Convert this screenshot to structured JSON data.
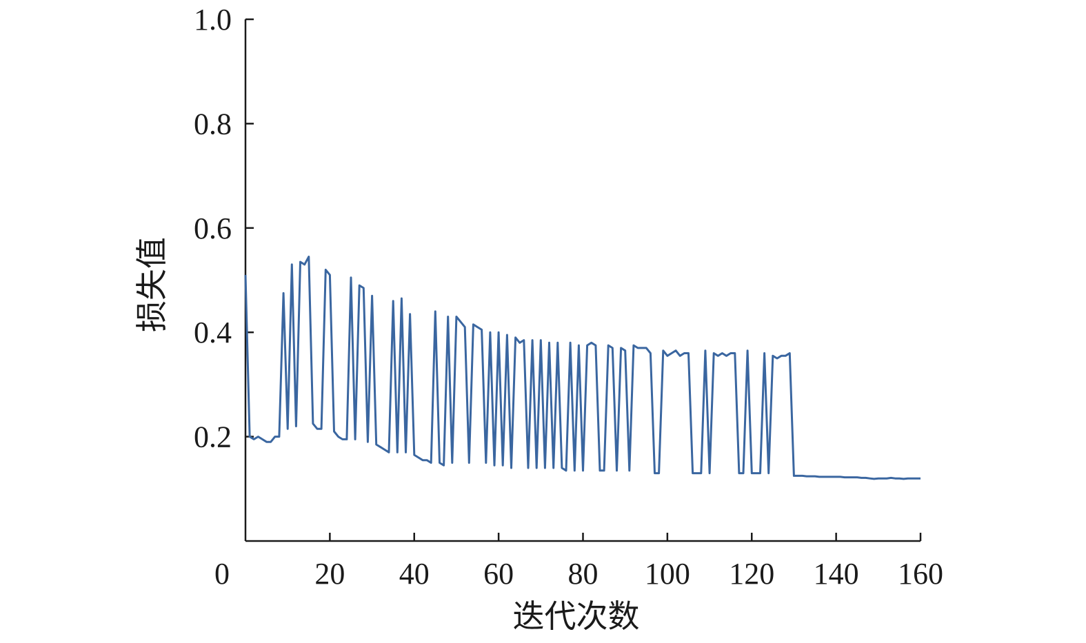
{
  "chart_data": {
    "type": "line",
    "title": "",
    "xlabel": "迭代次数",
    "ylabel": "损失值",
    "xlim": [
      0,
      160
    ],
    "ylim": [
      0,
      1.0
    ],
    "x_ticks": [
      0,
      20,
      40,
      60,
      80,
      100,
      120,
      140,
      160
    ],
    "x_tick_labels": [
      "0",
      "20",
      "40",
      "60",
      "80",
      "100",
      "120",
      "140",
      "160"
    ],
    "y_ticks": [
      0.2,
      0.4,
      0.6,
      0.8,
      1.0
    ],
    "y_tick_labels": [
      "0.2",
      "0.4",
      "0.6",
      "0.8",
      "1.0"
    ],
    "grid": false,
    "legend": "none",
    "colors": {
      "line": "#3a66a0",
      "axis": "#1a1a1a"
    },
    "series": [
      {
        "x": [
          0,
          1,
          2,
          3,
          4,
          5,
          6,
          7,
          8,
          9,
          10,
          11,
          12,
          13,
          14,
          15,
          16,
          17,
          18,
          19,
          20,
          21,
          22,
          23,
          24,
          25,
          26,
          27,
          28,
          29,
          30,
          31,
          32,
          33,
          34,
          35,
          36,
          37,
          38,
          39,
          40,
          41,
          42,
          43,
          44,
          45,
          46,
          47,
          48,
          49,
          50,
          51,
          52,
          53,
          54,
          55,
          56,
          57,
          58,
          59,
          60,
          61,
          62,
          63,
          64,
          65,
          66,
          67,
          68,
          69,
          70,
          71,
          72,
          73,
          74,
          75,
          76,
          77,
          78,
          79,
          80,
          81,
          82,
          83,
          84,
          85,
          86,
          87,
          88,
          89,
          90,
          91,
          92,
          93,
          94,
          95,
          96,
          97,
          98,
          99,
          100,
          101,
          102,
          103,
          104,
          105,
          106,
          107,
          108,
          109,
          110,
          111,
          112,
          113,
          114,
          115,
          116,
          117,
          118,
          119,
          120,
          121,
          122,
          123,
          124,
          125,
          126,
          127,
          128,
          129,
          130,
          131,
          132,
          133,
          134,
          135,
          136,
          137,
          138,
          139,
          140,
          141,
          142,
          143,
          144,
          145,
          146,
          147,
          148,
          149,
          150,
          151,
          152,
          153,
          154,
          155,
          156,
          157,
          158,
          159,
          160
        ],
        "y": [
          0.51,
          0.2,
          0.195,
          0.2,
          0.195,
          0.19,
          0.19,
          0.2,
          0.2,
          0.475,
          0.215,
          0.53,
          0.22,
          0.535,
          0.53,
          0.545,
          0.225,
          0.215,
          0.215,
          0.52,
          0.51,
          0.21,
          0.2,
          0.195,
          0.195,
          0.505,
          0.195,
          0.49,
          0.485,
          0.19,
          0.47,
          0.185,
          0.18,
          0.175,
          0.17,
          0.46,
          0.17,
          0.465,
          0.17,
          0.435,
          0.165,
          0.16,
          0.155,
          0.155,
          0.15,
          0.44,
          0.15,
          0.145,
          0.43,
          0.15,
          0.43,
          0.42,
          0.41,
          0.15,
          0.415,
          0.41,
          0.405,
          0.15,
          0.4,
          0.145,
          0.4,
          0.145,
          0.395,
          0.14,
          0.39,
          0.38,
          0.385,
          0.14,
          0.385,
          0.14,
          0.385,
          0.14,
          0.38,
          0.14,
          0.38,
          0.14,
          0.135,
          0.38,
          0.135,
          0.375,
          0.135,
          0.375,
          0.38,
          0.375,
          0.135,
          0.135,
          0.375,
          0.37,
          0.135,
          0.37,
          0.365,
          0.135,
          0.375,
          0.37,
          0.37,
          0.37,
          0.36,
          0.13,
          0.13,
          0.365,
          0.355,
          0.36,
          0.365,
          0.355,
          0.36,
          0.36,
          0.13,
          0.13,
          0.13,
          0.365,
          0.13,
          0.36,
          0.355,
          0.36,
          0.355,
          0.36,
          0.36,
          0.13,
          0.13,
          0.365,
          0.13,
          0.13,
          0.13,
          0.36,
          0.13,
          0.355,
          0.35,
          0.355,
          0.355,
          0.36,
          0.125,
          0.125,
          0.125,
          0.124,
          0.124,
          0.124,
          0.123,
          0.123,
          0.123,
          0.123,
          0.123,
          0.123,
          0.122,
          0.122,
          0.122,
          0.122,
          0.121,
          0.121,
          0.12,
          0.119,
          0.12,
          0.12,
          0.12,
          0.121,
          0.12,
          0.12,
          0.119,
          0.12,
          0.12,
          0.12,
          0.12
        ]
      }
    ]
  }
}
